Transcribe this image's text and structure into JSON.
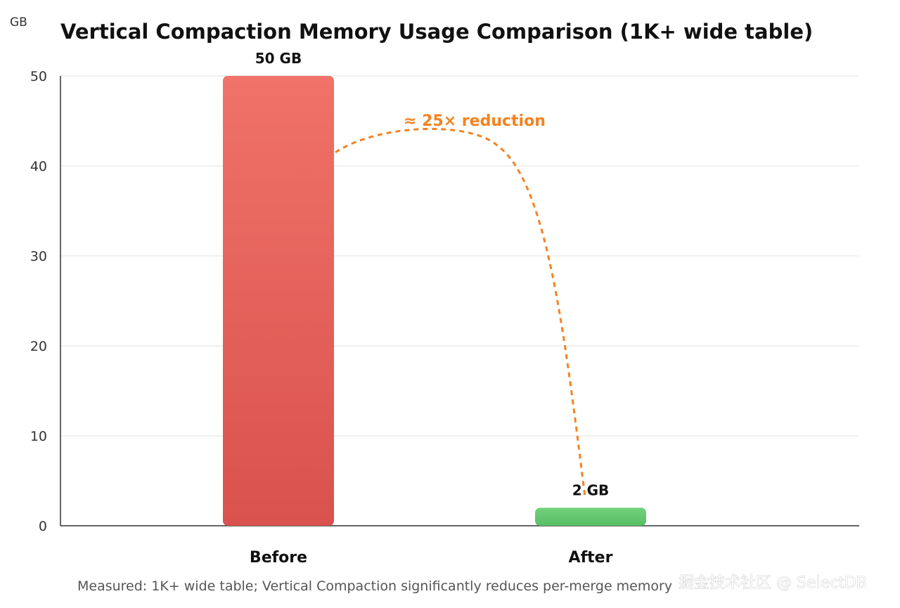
{
  "chart_data": {
    "type": "bar",
    "title": "Vertical Compaction Memory Usage Comparison (1K+ wide table)",
    "ylabel": "GB",
    "xlabel": "",
    "ylim": [
      0,
      50
    ],
    "yticks": [
      0,
      10,
      20,
      30,
      40,
      50
    ],
    "grid": true,
    "categories": [
      "Before",
      "After"
    ],
    "values": [
      50,
      2
    ],
    "data_labels": [
      "50 GB",
      "2 GB"
    ],
    "colors": [
      "#e65f58",
      "#62c76d"
    ],
    "annotation": {
      "text": "≈ 25× reduction",
      "color": "#f5821f",
      "from": "Before",
      "to": "After",
      "style": "dashed-arc"
    },
    "footnote": "Measured: 1K+ wide table; Vertical Compaction significantly reduces per-merge memory"
  },
  "watermark": "掘金技术社区 @ SelectDB"
}
